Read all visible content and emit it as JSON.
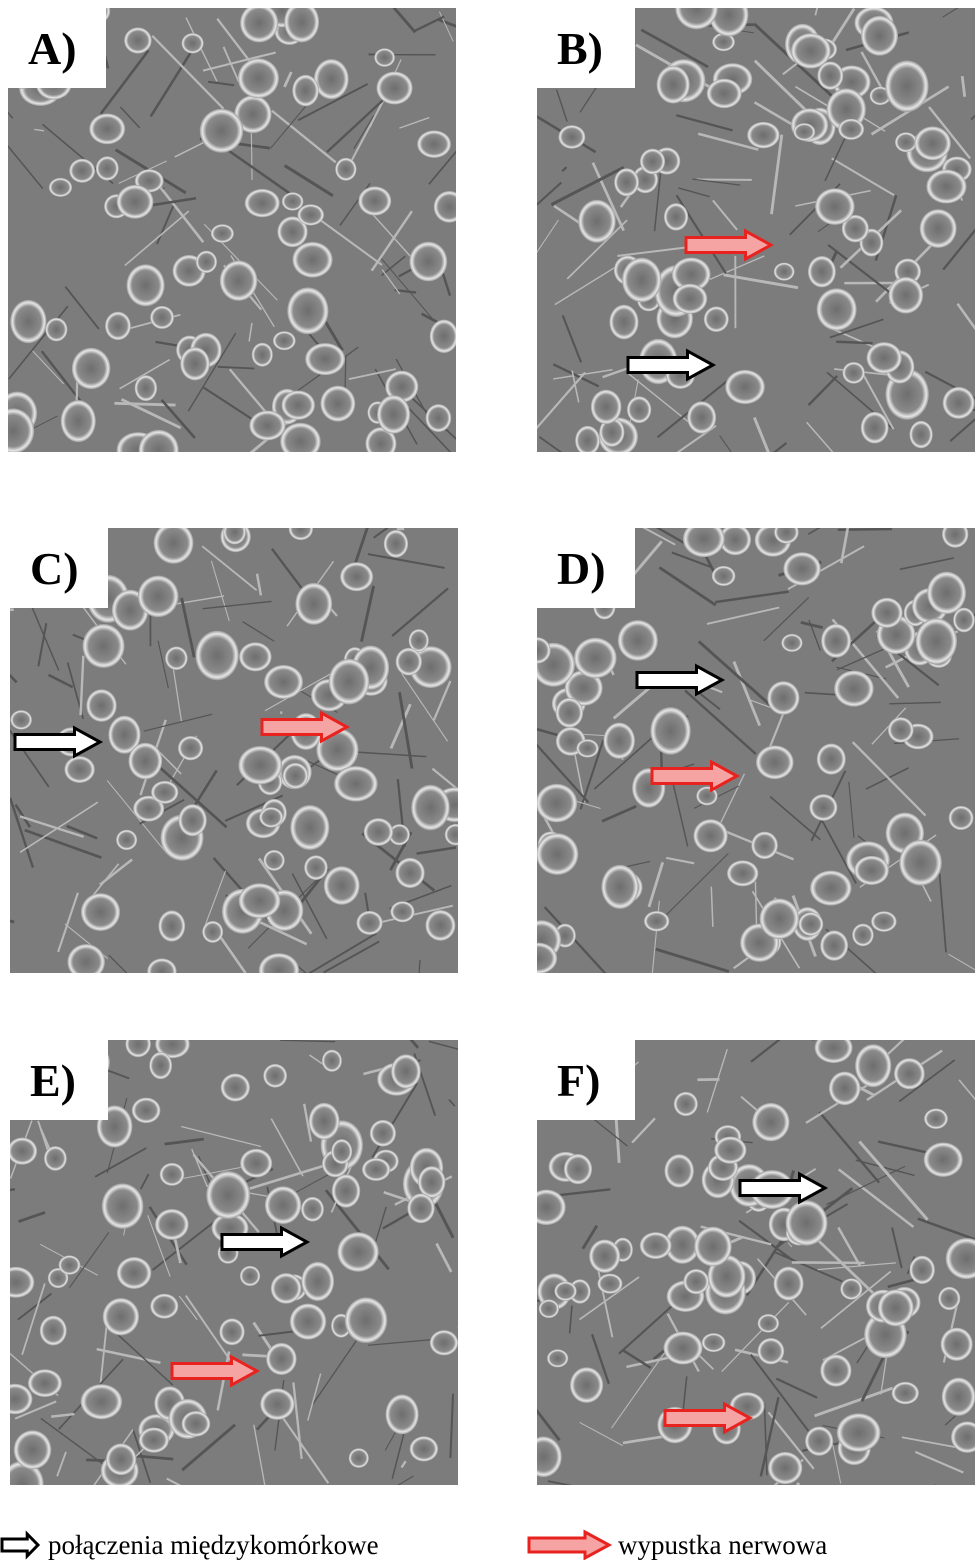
{
  "panels": [
    {
      "label": "A)"
    },
    {
      "label": "B)"
    },
    {
      "label": "C)"
    },
    {
      "label": "D)"
    },
    {
      "label": "E)"
    },
    {
      "label": "F)"
    }
  ],
  "legend": {
    "items": [
      {
        "label": "połączenia międzykomórkowe"
      },
      {
        "label": "wypustka nerwowa"
      }
    ]
  }
}
